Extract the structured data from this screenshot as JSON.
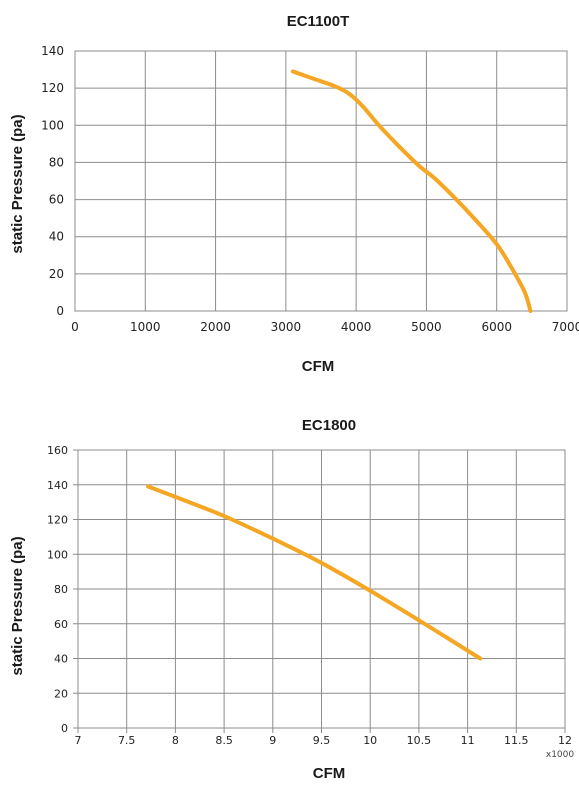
{
  "chart_data": [
    {
      "type": "line",
      "title": "EC1100T",
      "xlabel": "CFM",
      "ylabel": "static Pressure (pa)",
      "xlim": [
        0,
        7000
      ],
      "ylim": [
        0,
        140
      ],
      "xticks": [
        0,
        1000,
        2000,
        3000,
        4000,
        5000,
        6000,
        7000
      ],
      "xtick_labels": [
        "0",
        "1000",
        "2000",
        "3000",
        "4000",
        "5000",
        "6000",
        "7000"
      ],
      "yticks": [
        0,
        20,
        40,
        60,
        80,
        100,
        120,
        140
      ],
      "ytick_labels": [
        "0",
        "20",
        "40",
        "60",
        "80",
        "100",
        "120",
        "140"
      ],
      "grid": true,
      "series": [
        {
          "color": "#f5a623",
          "x": [
            3100,
            3400,
            3700,
            3900,
            4100,
            4300,
            4600,
            4900,
            5100,
            5400,
            5700,
            6000,
            6200,
            6400,
            6480
          ],
          "y": [
            129,
            125,
            121,
            117,
            110,
            101,
            89,
            78,
            72,
            61,
            49,
            36,
            24,
            10,
            0
          ]
        }
      ]
    },
    {
      "type": "line",
      "title": "EC1800",
      "xlabel": "CFM",
      "ylabel": "static Pressure (pa)",
      "x_multiplier_label": "x1000",
      "xlim": [
        7,
        12
      ],
      "ylim": [
        0,
        160
      ],
      "xticks": [
        7,
        7.5,
        8,
        8.5,
        9,
        9.5,
        10,
        10.5,
        11,
        11.5,
        12
      ],
      "xtick_labels": [
        "7",
        "7.5",
        "8",
        "8.5",
        "9",
        "9.5",
        "10",
        "10.5",
        "11",
        "11.5",
        "12"
      ],
      "yticks": [
        0,
        20,
        40,
        60,
        80,
        100,
        120,
        140,
        160
      ],
      "ytick_labels": [
        "0",
        "20",
        "40",
        "60",
        "80",
        "100",
        "120",
        "140",
        "160"
      ],
      "grid": true,
      "series": [
        {
          "color": "#f5a623",
          "x": [
            7.72,
            8.0,
            8.5,
            9.0,
            9.5,
            10.0,
            10.5,
            11.13
          ],
          "y": [
            139,
            133,
            122,
            109,
            95,
            79,
            62,
            40
          ]
        }
      ]
    }
  ]
}
